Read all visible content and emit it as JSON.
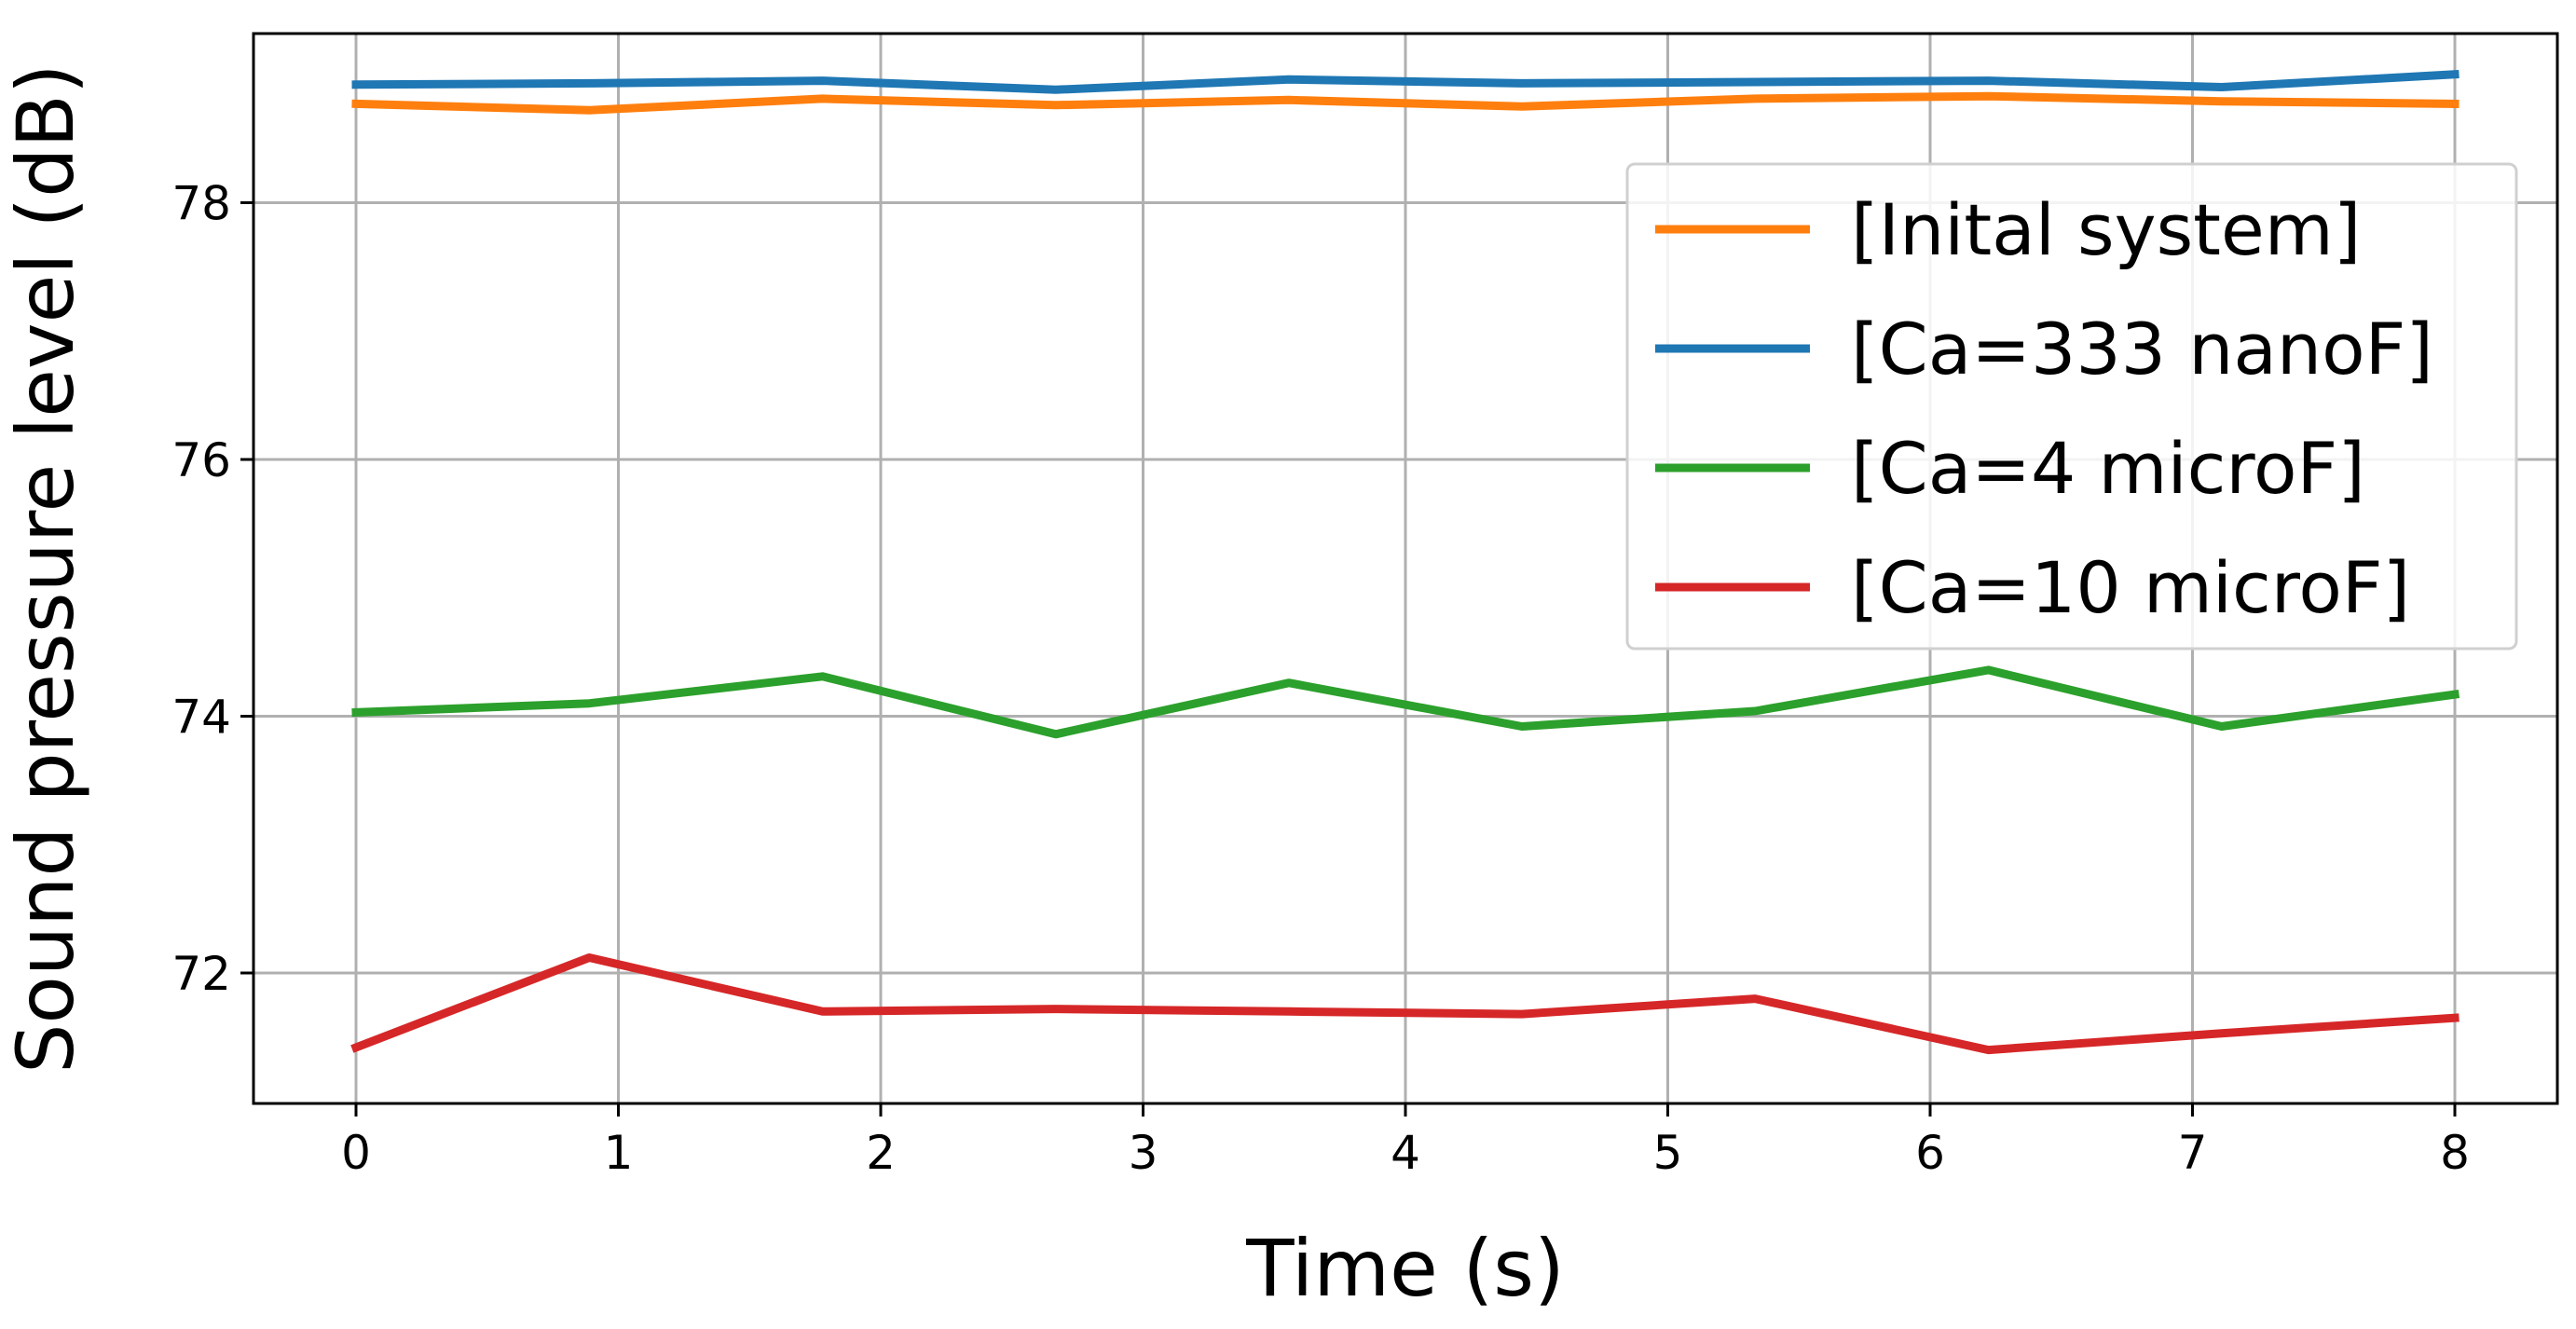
{
  "chart_data": {
    "type": "line",
    "xlabel": "Time (s)",
    "ylabel": "Sound pressure level (dB)",
    "xlim": [
      -0.35,
      8.35
    ],
    "ylim": [
      71.1,
      79.45
    ],
    "xticks": [
      0,
      1,
      2,
      3,
      4,
      5,
      6,
      7,
      8
    ],
    "xtick_labels": [
      "0",
      "1",
      "2",
      "3",
      "4",
      "5",
      "6",
      "7",
      "8"
    ],
    "yticks": [
      72,
      74,
      76,
      78
    ],
    "ytick_labels": [
      "72",
      "74",
      "76",
      "78"
    ],
    "grid": true,
    "legend_position": "upper-right",
    "x": [
      0,
      0.889,
      1.778,
      2.667,
      3.556,
      4.444,
      5.333,
      6.222,
      7.111,
      8
    ],
    "series": [
      {
        "name": "[Inital system]",
        "color": "#ff7f0e",
        "values": [
          78.77,
          78.72,
          78.81,
          78.76,
          78.8,
          78.75,
          78.81,
          78.83,
          78.79,
          78.77
        ]
      },
      {
        "name": "[Ca=333 nanoF]",
        "color": "#1f77b4",
        "values": [
          78.92,
          78.93,
          78.95,
          78.88,
          78.96,
          78.93,
          78.94,
          78.95,
          78.9,
          79.0
        ]
      },
      {
        "name": "[Ca=4 microF]",
        "color": "#2ca02c",
        "values": [
          74.03,
          74.1,
          74.31,
          73.86,
          74.26,
          73.92,
          74.04,
          74.36,
          73.92,
          74.17
        ]
      },
      {
        "name": "[Ca=10 microF]",
        "color": "#d62728",
        "values": [
          71.42,
          72.12,
          71.7,
          71.72,
          71.7,
          71.68,
          71.8,
          71.4,
          71.53,
          71.65
        ]
      }
    ]
  }
}
